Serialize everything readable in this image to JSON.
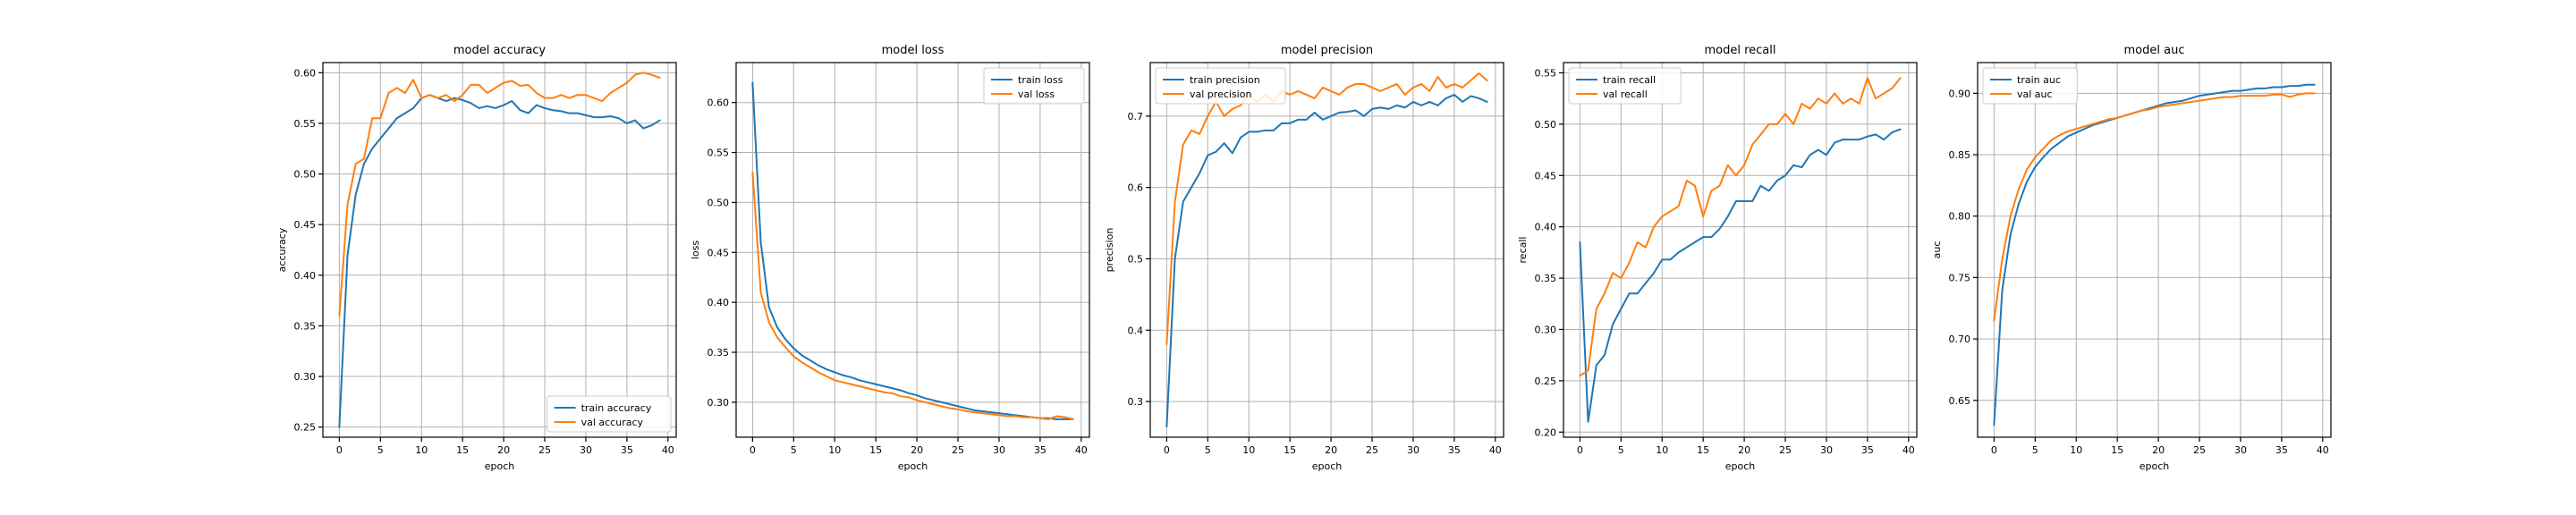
{
  "colors": {
    "train": "#1f77b4",
    "val": "#ff7f0e"
  },
  "chart_data": [
    {
      "type": "line",
      "title": "model accuracy",
      "xlabel": "epoch",
      "ylabel": "accuracy",
      "xlim": [
        -2,
        41
      ],
      "ylim": [
        0.24,
        0.61
      ],
      "xticks": [
        0,
        5,
        10,
        15,
        20,
        25,
        30,
        35,
        40
      ],
      "yticks": [
        0.25,
        0.3,
        0.35,
        0.4,
        0.45,
        0.5,
        0.55,
        0.6
      ],
      "ytick_labels": [
        "0.25",
        "0.30",
        "0.35",
        "0.40",
        "0.45",
        "0.50",
        "0.55",
        "0.60"
      ],
      "grid": true,
      "legend": "bottom-right",
      "x": [
        0,
        1,
        2,
        3,
        4,
        5,
        6,
        7,
        8,
        9,
        10,
        11,
        12,
        13,
        14,
        15,
        16,
        17,
        18,
        19,
        20,
        21,
        22,
        23,
        24,
        25,
        26,
        27,
        28,
        29,
        30,
        31,
        32,
        33,
        34,
        35,
        36,
        37,
        38,
        39
      ],
      "series": [
        {
          "name": "train accuracy",
          "color": "train",
          "values": [
            0.25,
            0.42,
            0.48,
            0.51,
            0.525,
            0.535,
            0.545,
            0.555,
            0.56,
            0.565,
            0.575,
            0.578,
            0.575,
            0.572,
            0.575,
            0.573,
            0.57,
            0.565,
            0.567,
            0.565,
            0.568,
            0.572,
            0.563,
            0.56,
            0.568,
            0.565,
            0.563,
            0.562,
            0.56,
            0.56,
            0.558,
            0.556,
            0.556,
            0.557,
            0.555,
            0.55,
            0.553,
            0.545,
            0.548,
            0.553
          ]
        },
        {
          "name": "val accuracy",
          "color": "val",
          "values": [
            0.36,
            0.47,
            0.51,
            0.515,
            0.555,
            0.555,
            0.58,
            0.585,
            0.58,
            0.593,
            0.575,
            0.578,
            0.575,
            0.578,
            0.572,
            0.578,
            0.588,
            0.588,
            0.58,
            0.585,
            0.59,
            0.592,
            0.587,
            0.588,
            0.58,
            0.575,
            0.575,
            0.578,
            0.575,
            0.578,
            0.578,
            0.575,
            0.572,
            0.58,
            0.585,
            0.59,
            0.598,
            0.6,
            0.598,
            0.595
          ]
        }
      ]
    },
    {
      "type": "line",
      "title": "model loss",
      "xlabel": "epoch",
      "ylabel": "loss",
      "xlim": [
        -2,
        41
      ],
      "ylim": [
        0.265,
        0.64
      ],
      "xticks": [
        0,
        5,
        10,
        15,
        20,
        25,
        30,
        35,
        40
      ],
      "yticks": [
        0.3,
        0.35,
        0.4,
        0.45,
        0.5,
        0.55,
        0.6
      ],
      "ytick_labels": [
        "0.30",
        "0.35",
        "0.40",
        "0.45",
        "0.50",
        "0.55",
        "0.60"
      ],
      "grid": true,
      "legend": "top-right",
      "x": [
        0,
        1,
        2,
        3,
        4,
        5,
        6,
        7,
        8,
        9,
        10,
        11,
        12,
        13,
        14,
        15,
        16,
        17,
        18,
        19,
        20,
        21,
        22,
        23,
        24,
        25,
        26,
        27,
        28,
        29,
        30,
        31,
        32,
        33,
        34,
        35,
        36,
        37,
        38,
        39
      ],
      "series": [
        {
          "name": "train loss",
          "color": "train",
          "values": [
            0.62,
            0.46,
            0.395,
            0.375,
            0.363,
            0.354,
            0.347,
            0.342,
            0.337,
            0.333,
            0.33,
            0.327,
            0.325,
            0.322,
            0.32,
            0.318,
            0.316,
            0.314,
            0.312,
            0.309,
            0.307,
            0.304,
            0.302,
            0.3,
            0.298,
            0.296,
            0.294,
            0.292,
            0.291,
            0.29,
            0.289,
            0.288,
            0.287,
            0.286,
            0.285,
            0.284,
            0.284,
            0.283,
            0.283,
            0.283
          ]
        },
        {
          "name": "val loss",
          "color": "val",
          "values": [
            0.53,
            0.41,
            0.38,
            0.365,
            0.355,
            0.346,
            0.34,
            0.335,
            0.33,
            0.326,
            0.322,
            0.32,
            0.318,
            0.316,
            0.314,
            0.312,
            0.31,
            0.309,
            0.306,
            0.305,
            0.302,
            0.3,
            0.298,
            0.296,
            0.294,
            0.293,
            0.291,
            0.29,
            0.289,
            0.288,
            0.287,
            0.286,
            0.286,
            0.285,
            0.285,
            0.284,
            0.283,
            0.286,
            0.285,
            0.283
          ]
        }
      ]
    },
    {
      "type": "line",
      "title": "model precision",
      "xlabel": "epoch",
      "ylabel": "precision",
      "xlim": [
        -2,
        41
      ],
      "ylim": [
        0.25,
        0.775
      ],
      "xticks": [
        0,
        5,
        10,
        15,
        20,
        25,
        30,
        35,
        40
      ],
      "yticks": [
        0.3,
        0.4,
        0.5,
        0.6,
        0.7
      ],
      "ytick_labels": [
        "0.3",
        "0.4",
        "0.5",
        "0.6",
        "0.7"
      ],
      "grid": true,
      "legend": "top-left",
      "x": [
        0,
        1,
        2,
        3,
        4,
        5,
        6,
        7,
        8,
        9,
        10,
        11,
        12,
        13,
        14,
        15,
        16,
        17,
        18,
        19,
        20,
        21,
        22,
        23,
        24,
        25,
        26,
        27,
        28,
        29,
        30,
        31,
        32,
        33,
        34,
        35,
        36,
        37,
        38,
        39
      ],
      "series": [
        {
          "name": "train precision",
          "color": "train",
          "values": [
            0.265,
            0.5,
            0.58,
            0.6,
            0.62,
            0.645,
            0.65,
            0.662,
            0.648,
            0.67,
            0.678,
            0.678,
            0.68,
            0.68,
            0.69,
            0.69,
            0.695,
            0.695,
            0.705,
            0.695,
            0.7,
            0.705,
            0.706,
            0.708,
            0.7,
            0.71,
            0.712,
            0.71,
            0.715,
            0.712,
            0.72,
            0.715,
            0.72,
            0.715,
            0.725,
            0.73,
            0.72,
            0.728,
            0.725,
            0.72
          ]
        },
        {
          "name": "val precision",
          "color": "val",
          "values": [
            0.38,
            0.58,
            0.66,
            0.68,
            0.675,
            0.7,
            0.72,
            0.7,
            0.71,
            0.715,
            0.73,
            0.72,
            0.73,
            0.72,
            0.735,
            0.73,
            0.735,
            0.73,
            0.725,
            0.74,
            0.735,
            0.73,
            0.74,
            0.745,
            0.745,
            0.74,
            0.735,
            0.74,
            0.745,
            0.73,
            0.74,
            0.745,
            0.735,
            0.755,
            0.74,
            0.745,
            0.74,
            0.75,
            0.76,
            0.75
          ]
        }
      ]
    },
    {
      "type": "line",
      "title": "model recall",
      "xlabel": "epoch",
      "ylabel": "recall",
      "xlim": [
        -2,
        41
      ],
      "ylim": [
        0.195,
        0.56
      ],
      "xticks": [
        0,
        5,
        10,
        15,
        20,
        25,
        30,
        35,
        40
      ],
      "yticks": [
        0.2,
        0.25,
        0.3,
        0.35,
        0.4,
        0.45,
        0.5,
        0.55
      ],
      "ytick_labels": [
        "0.20",
        "0.25",
        "0.30",
        "0.35",
        "0.40",
        "0.45",
        "0.50",
        "0.55"
      ],
      "grid": true,
      "legend": "top-left",
      "x": [
        0,
        1,
        2,
        3,
        4,
        5,
        6,
        7,
        8,
        9,
        10,
        11,
        12,
        13,
        14,
        15,
        16,
        17,
        18,
        19,
        20,
        21,
        22,
        23,
        24,
        25,
        26,
        27,
        28,
        29,
        30,
        31,
        32,
        33,
        34,
        35,
        36,
        37,
        38,
        39
      ],
      "series": [
        {
          "name": "train recall",
          "color": "train",
          "values": [
            0.385,
            0.21,
            0.265,
            0.275,
            0.305,
            0.32,
            0.335,
            0.335,
            0.345,
            0.355,
            0.368,
            0.368,
            0.375,
            0.38,
            0.385,
            0.39,
            0.39,
            0.398,
            0.41,
            0.425,
            0.425,
            0.425,
            0.44,
            0.435,
            0.445,
            0.45,
            0.46,
            0.458,
            0.47,
            0.475,
            0.47,
            0.482,
            0.485,
            0.485,
            0.485,
            0.488,
            0.49,
            0.485,
            0.492,
            0.495
          ]
        },
        {
          "name": "val recall",
          "color": "val",
          "values": [
            0.255,
            0.26,
            0.32,
            0.335,
            0.355,
            0.35,
            0.365,
            0.385,
            0.38,
            0.4,
            0.41,
            0.415,
            0.42,
            0.445,
            0.44,
            0.41,
            0.435,
            0.44,
            0.46,
            0.45,
            0.46,
            0.48,
            0.49,
            0.5,
            0.5,
            0.51,
            0.5,
            0.52,
            0.515,
            0.525,
            0.52,
            0.53,
            0.52,
            0.525,
            0.52,
            0.545,
            0.525,
            0.53,
            0.535,
            0.545
          ]
        }
      ]
    },
    {
      "type": "line",
      "title": "model auc",
      "xlabel": "epoch",
      "ylabel": "auc",
      "xlim": [
        -2,
        41
      ],
      "ylim": [
        0.62,
        0.925
      ],
      "xticks": [
        0,
        5,
        10,
        15,
        20,
        25,
        30,
        35,
        40
      ],
      "yticks": [
        0.65,
        0.7,
        0.75,
        0.8,
        0.85,
        0.9
      ],
      "ytick_labels": [
        "0.65",
        "0.70",
        "0.75",
        "0.80",
        "0.85",
        "0.90"
      ],
      "grid": true,
      "legend": "top-left",
      "x": [
        0,
        1,
        2,
        3,
        4,
        5,
        6,
        7,
        8,
        9,
        10,
        11,
        12,
        13,
        14,
        15,
        16,
        17,
        18,
        19,
        20,
        21,
        22,
        23,
        24,
        25,
        26,
        27,
        28,
        29,
        30,
        31,
        32,
        33,
        34,
        35,
        36,
        37,
        38,
        39
      ],
      "series": [
        {
          "name": "train auc",
          "color": "train",
          "values": [
            0.63,
            0.74,
            0.785,
            0.81,
            0.828,
            0.84,
            0.848,
            0.855,
            0.86,
            0.865,
            0.868,
            0.871,
            0.874,
            0.876,
            0.878,
            0.88,
            0.882,
            0.884,
            0.886,
            0.888,
            0.89,
            0.892,
            0.893,
            0.894,
            0.896,
            0.898,
            0.899,
            0.9,
            0.901,
            0.902,
            0.902,
            0.903,
            0.904,
            0.904,
            0.905,
            0.905,
            0.906,
            0.906,
            0.907,
            0.907
          ]
        },
        {
          "name": "val auc",
          "color": "val",
          "values": [
            0.715,
            0.765,
            0.8,
            0.822,
            0.838,
            0.848,
            0.855,
            0.862,
            0.866,
            0.869,
            0.871,
            0.873,
            0.875,
            0.877,
            0.879,
            0.88,
            0.882,
            0.884,
            0.886,
            0.887,
            0.889,
            0.89,
            0.891,
            0.892,
            0.893,
            0.894,
            0.895,
            0.896,
            0.897,
            0.897,
            0.898,
            0.898,
            0.898,
            0.898,
            0.899,
            0.899,
            0.897,
            0.899,
            0.9,
            0.9
          ]
        }
      ]
    }
  ]
}
